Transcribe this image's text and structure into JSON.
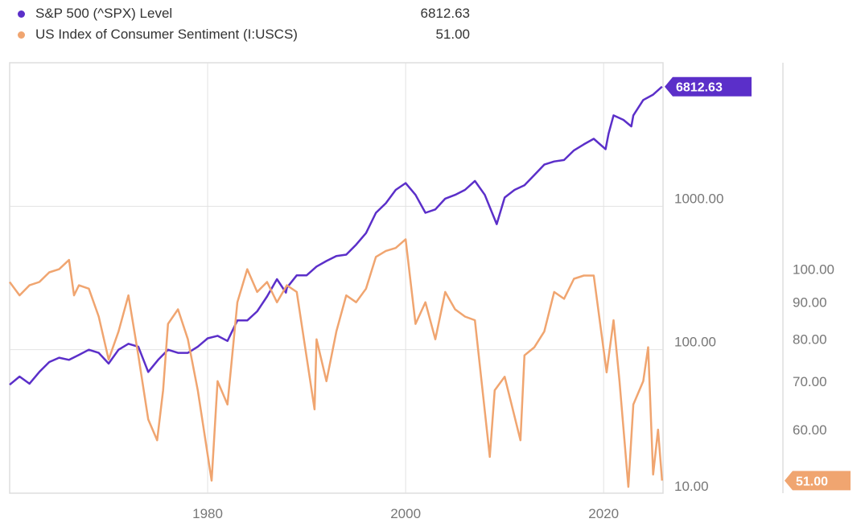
{
  "legend": [
    {
      "name": "S&P 500 (^SPX) Level",
      "value": "6812.63",
      "color": "#5b2fc9"
    },
    {
      "name": "US Index of Consumer Sentiment (I:USCS)",
      "value": "51.00",
      "color": "#f0a570"
    }
  ],
  "chart_data": {
    "type": "line",
    "title": "",
    "x_ticks": [
      "1980",
      "2000",
      "2020"
    ],
    "x_range": [
      1960,
      2026
    ],
    "grid": true,
    "legend_position": "top-left",
    "axes": {
      "left": {
        "scale": "log",
        "range": [
          10,
          10000
        ],
        "ticks": [
          "10.00",
          "100.00",
          "1000.00"
        ]
      },
      "right": {
        "scale": "log",
        "range": [
          49,
          193
        ],
        "ticks": [
          "60.00",
          "70.00",
          "80.00",
          "90.00",
          "100.00"
        ]
      }
    },
    "series": [
      {
        "name": "S&P 500 (^SPX) Level",
        "axis": "left",
        "color": "#5b2fc9",
        "last_label": "6812.63",
        "x": [
          1960,
          1961,
          1962,
          1963,
          1964,
          1965,
          1966,
          1967,
          1968,
          1969,
          1970,
          1971,
          1972,
          1973,
          1974,
          1975,
          1976,
          1977,
          1978,
          1979,
          1980,
          1981,
          1982,
          1983,
          1984,
          1985,
          1986,
          1987,
          1987.9,
          1988,
          1989,
          1990,
          1991,
          1992,
          1993,
          1994,
          1995,
          1996,
          1997,
          1998,
          1999,
          2000,
          2001,
          2002,
          2003,
          2004,
          2005,
          2006,
          2007,
          2008,
          2009.2,
          2010,
          2011,
          2012,
          2013,
          2014,
          2015,
          2016,
          2017,
          2018,
          2019,
          2020.2,
          2020.5,
          2021,
          2022,
          2022.8,
          2023,
          2024,
          2025,
          2025.9
        ],
        "values": [
          57,
          65,
          58,
          70,
          82,
          88,
          85,
          92,
          100,
          95,
          80,
          100,
          110,
          105,
          70,
          85,
          100,
          95,
          95,
          105,
          120,
          125,
          115,
          160,
          160,
          185,
          235,
          310,
          250,
          270,
          330,
          330,
          380,
          415,
          450,
          460,
          540,
          650,
          900,
          1050,
          1300,
          1450,
          1200,
          900,
          950,
          1130,
          1200,
          1300,
          1500,
          1200,
          750,
          1150,
          1300,
          1400,
          1650,
          1950,
          2050,
          2100,
          2450,
          2700,
          2950,
          2500,
          3200,
          4300,
          4000,
          3600,
          4300,
          5500,
          6000,
          6812.63
        ]
      },
      {
        "name": "US Index of Consumer Sentiment (I:USCS)",
        "axis": "right",
        "color": "#f0a570",
        "last_label": "51.00",
        "x": [
          1960,
          1961,
          1962,
          1963,
          1964,
          1965,
          1966,
          1966.5,
          1967,
          1968,
          1969,
          1970,
          1971,
          1972,
          1973,
          1974,
          1974.9,
          1975.5,
          1976,
          1977,
          1978,
          1979,
          1980.4,
          1981,
          1982,
          1983,
          1984,
          1985,
          1986,
          1987,
          1988,
          1989,
          1990.8,
          1991,
          1992,
          1993,
          1994,
          1995,
          1996,
          1997,
          1998,
          1999,
          2000,
          2001,
          2002,
          2003,
          2004,
          2005,
          2006,
          2007,
          2008.5,
          2009,
          2010,
          2011.6,
          2012,
          2013,
          2014,
          2015,
          2016,
          2017,
          2018,
          2019,
          2020.3,
          2021,
          2021.6,
          2022.5,
          2023,
          2024,
          2024.5,
          2025,
          2025.5,
          2025.9
        ],
        "values": [
          96,
          92,
          95,
          96,
          99,
          100,
          103,
          92,
          95,
          94,
          86,
          75,
          82,
          92,
          76,
          62,
          58,
          68,
          84,
          88,
          80,
          68,
          51,
          70,
          65,
          90,
          100,
          93,
          96,
          90,
          95,
          93,
          64,
          80,
          70,
          82,
          92,
          90,
          94,
          104,
          106,
          107,
          110,
          84,
          90,
          80,
          93,
          88,
          86,
          85,
          55,
          68,
          71,
          58,
          76,
          78,
          82,
          93,
          91,
          97,
          98,
          98,
          72,
          85,
          70,
          50,
          65,
          70,
          78,
          52,
          60,
          51
        ]
      }
    ]
  }
}
